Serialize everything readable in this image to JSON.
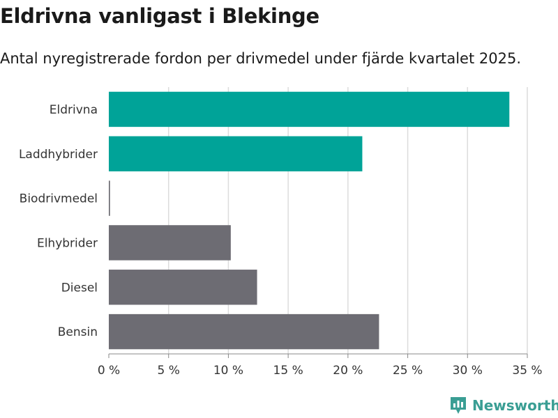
{
  "title": "Eldrivna vanligast i Blekinge",
  "subtitle": "Antal nyregistrerade fordon per drivmedel under fjärde kvartalet 2025.",
  "brand": "Newsworthy",
  "colors": {
    "highlight": "#00a398",
    "default": "#6d6c73",
    "grid": "#dcdcdc",
    "axis": "#333333",
    "brand": "#3a9e94"
  },
  "chart_data": {
    "type": "bar",
    "orientation": "horizontal",
    "categories": [
      "Eldrivna",
      "Laddhybrider",
      "Biodrivmedel",
      "Elhybrider",
      "Diesel",
      "Bensin"
    ],
    "values": [
      33.5,
      21.2,
      0.1,
      10.2,
      12.4,
      22.6
    ],
    "highlighted": [
      true,
      true,
      false,
      false,
      false,
      false
    ],
    "xlim": [
      0,
      35
    ],
    "xticks": [
      0,
      5,
      10,
      15,
      20,
      25,
      30,
      35
    ],
    "tick_suffix": " %",
    "grid": true
  }
}
